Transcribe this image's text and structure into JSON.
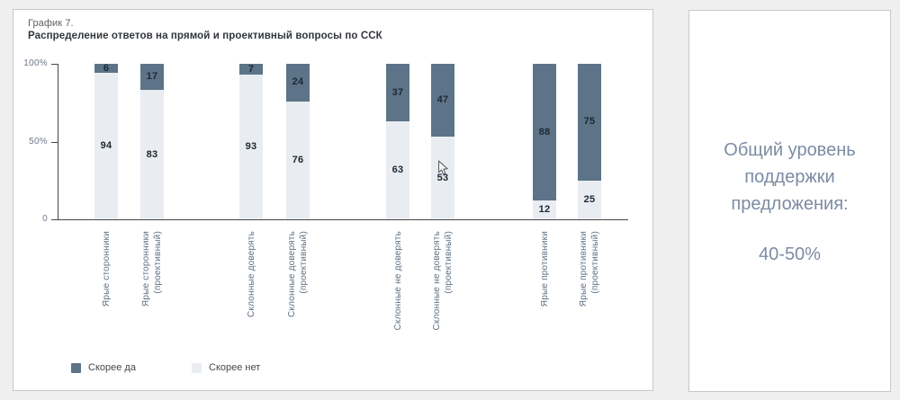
{
  "page": {
    "background": "#efefef"
  },
  "chart_panel": {
    "label": "График 7.",
    "title": "Распределение ответов на прямой и проективный вопросы по ССК"
  },
  "chart_data": {
    "type": "bar",
    "stacked": true,
    "title": "Распределение ответов на прямой и проективный вопросы по ССК",
    "categories": [
      [
        "Ярые сторонники"
      ],
      [
        "Ярые сторонники",
        "(проективный)"
      ],
      [
        "Склонные доверять"
      ],
      [
        "Склонные доверять",
        "(проективный)"
      ],
      [
        "Склонные не доверять"
      ],
      [
        "Склонные не доверять",
        "(проективный)"
      ],
      [
        "Ярые противники"
      ],
      [
        "Ярые противники",
        "(проективный)"
      ]
    ],
    "series": [
      {
        "name": "Скорее да",
        "stack_position": "top",
        "color": "#5d7488",
        "values": [
          6,
          17,
          7,
          24,
          37,
          47,
          88,
          75
        ]
      },
      {
        "name": "Скорее нет",
        "stack_position": "bottom",
        "color": "#e9edf1",
        "values": [
          94,
          83,
          93,
          76,
          63,
          53,
          12,
          25
        ]
      }
    ],
    "ylim": [
      0,
      100
    ],
    "yticks": [
      {
        "value": 100,
        "label": "100%"
      },
      {
        "value": 50,
        "label": "50%"
      },
      {
        "value": 0,
        "label": "0"
      }
    ],
    "value_labels": true,
    "legend_position": "bottom-left",
    "grid": false
  },
  "side_panel": {
    "text": "Общий уровень\nподдержки\nпредложения:",
    "value": "40-50%"
  },
  "colors": {
    "bar_yes": "#5d7488",
    "bar_no": "#e9edf1",
    "axis": "#474747",
    "tick_label": "#6d7b88",
    "category_label": "#5f7183",
    "value_label": "#1d2733",
    "side_text": "#7c8ca3"
  }
}
